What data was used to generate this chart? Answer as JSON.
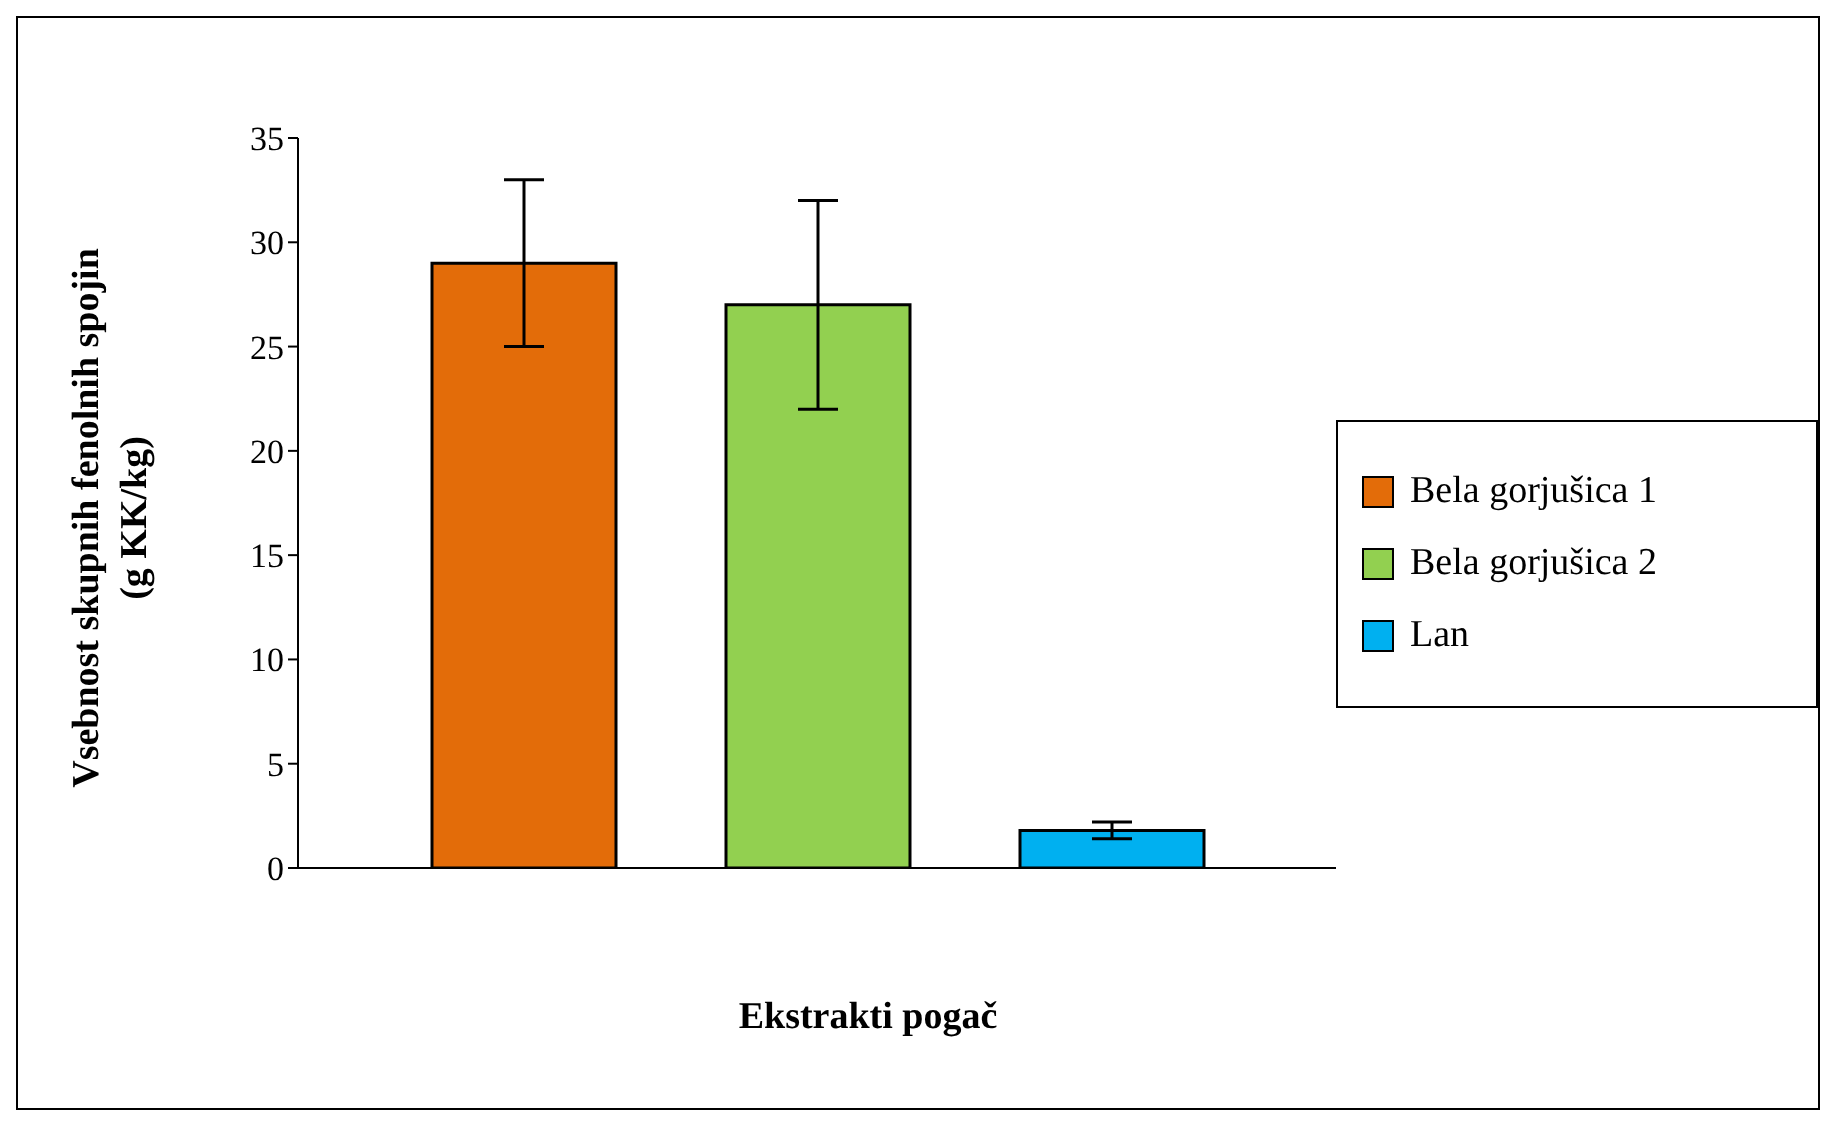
{
  "chart_data": {
    "type": "bar",
    "xlabel": "Ekstrakti pogač",
    "ylabel": "Vsebnost skupnih fenolnih spojin\n(g KK/kg)",
    "categories": [
      null
    ],
    "series": [
      {
        "name": "Bela gorjušica 1",
        "color": "#e36c09",
        "values": [
          29
        ],
        "errors": [
          4
        ]
      },
      {
        "name": "Bela gorjušica 2",
        "color": "#92d050",
        "values": [
          27
        ],
        "errors": [
          5
        ]
      },
      {
        "name": "Lan",
        "color": "#00b0f0",
        "values": [
          1.8
        ],
        "errors": [
          0.4
        ]
      }
    ],
    "ylim": [
      0,
      35
    ],
    "yticks": [
      0,
      5,
      10,
      15,
      20,
      25,
      30,
      35
    ],
    "grid": false,
    "legend": "right"
  }
}
